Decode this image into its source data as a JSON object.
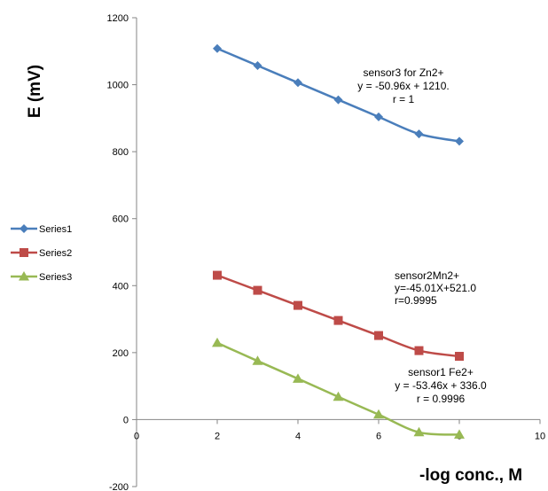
{
  "chart_data": {
    "type": "line",
    "xlabel": "-log conc., M",
    "ylabel": "E (mV)",
    "xlim": [
      0,
      10
    ],
    "ylim": [
      -200,
      1200
    ],
    "xticks": [
      0,
      2,
      4,
      6,
      8,
      10
    ],
    "yticks": [
      -200,
      0,
      200,
      400,
      600,
      800,
      1000,
      1200
    ],
    "grid": false,
    "legend_position": "left",
    "series": [
      {
        "name": "Series1",
        "color": "#4A7EBB",
        "marker": "diamond",
        "x": [
          2,
          3,
          4,
          5,
          6,
          7,
          8
        ],
        "y": [
          1108,
          1057,
          1006,
          955,
          904,
          853,
          831
        ]
      },
      {
        "name": "Series2",
        "color": "#BE4B48",
        "marker": "square",
        "x": [
          2,
          3,
          4,
          5,
          6,
          7,
          8
        ],
        "y": [
          431,
          386,
          341,
          296,
          251,
          206,
          189
        ]
      },
      {
        "name": "Series3",
        "color": "#98B954",
        "marker": "triangle",
        "x": [
          2,
          3,
          4,
          5,
          6,
          7,
          8
        ],
        "y": [
          229,
          175,
          122,
          68,
          15,
          -38,
          -45
        ]
      }
    ],
    "annotations": [
      {
        "id": "zn",
        "lines": [
          "sensor3 for Zn2+",
          "y = -50.96x + 1210.",
          "r = 1"
        ]
      },
      {
        "id": "mn",
        "lines": [
          "sensor2Mn2+",
          "y=-45.01X+521.0",
          "r=0.9995"
        ]
      },
      {
        "id": "fe",
        "lines": [
          "sensor1  Fe2+",
          "y = -53.46x + 336.0",
          "r = 0.9996"
        ]
      }
    ]
  }
}
